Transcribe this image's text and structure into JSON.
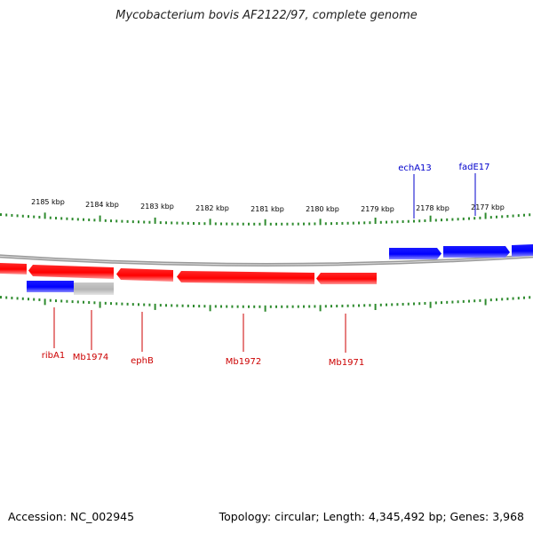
{
  "title": "Mycobacterium bovis AF2122/97, complete genome",
  "footer": {
    "accession": "Accession: NC_002945",
    "stats": "Topology: circular; Length: 4,345,492 bp; Genes: 3,968"
  },
  "colors": {
    "forward": "#0000ff",
    "reverse": "#ff0000",
    "pseudo": "#b8b8b8",
    "ticks": "#2e8b2e",
    "backbone": "#888888"
  },
  "scale_labels": [
    "2185 kbp",
    "2184 kbp",
    "2183 kbp",
    "2182 kbp",
    "2181 kbp",
    "2180 kbp",
    "2179 kbp",
    "2178 kbp",
    "2177 kbp"
  ],
  "gene_labels_top": [
    "echA13",
    "fadE17"
  ],
  "gene_labels_bottom": [
    "ribA1",
    "Mb1974",
    "ephB",
    "Mb1972",
    "Mb1971"
  ]
}
